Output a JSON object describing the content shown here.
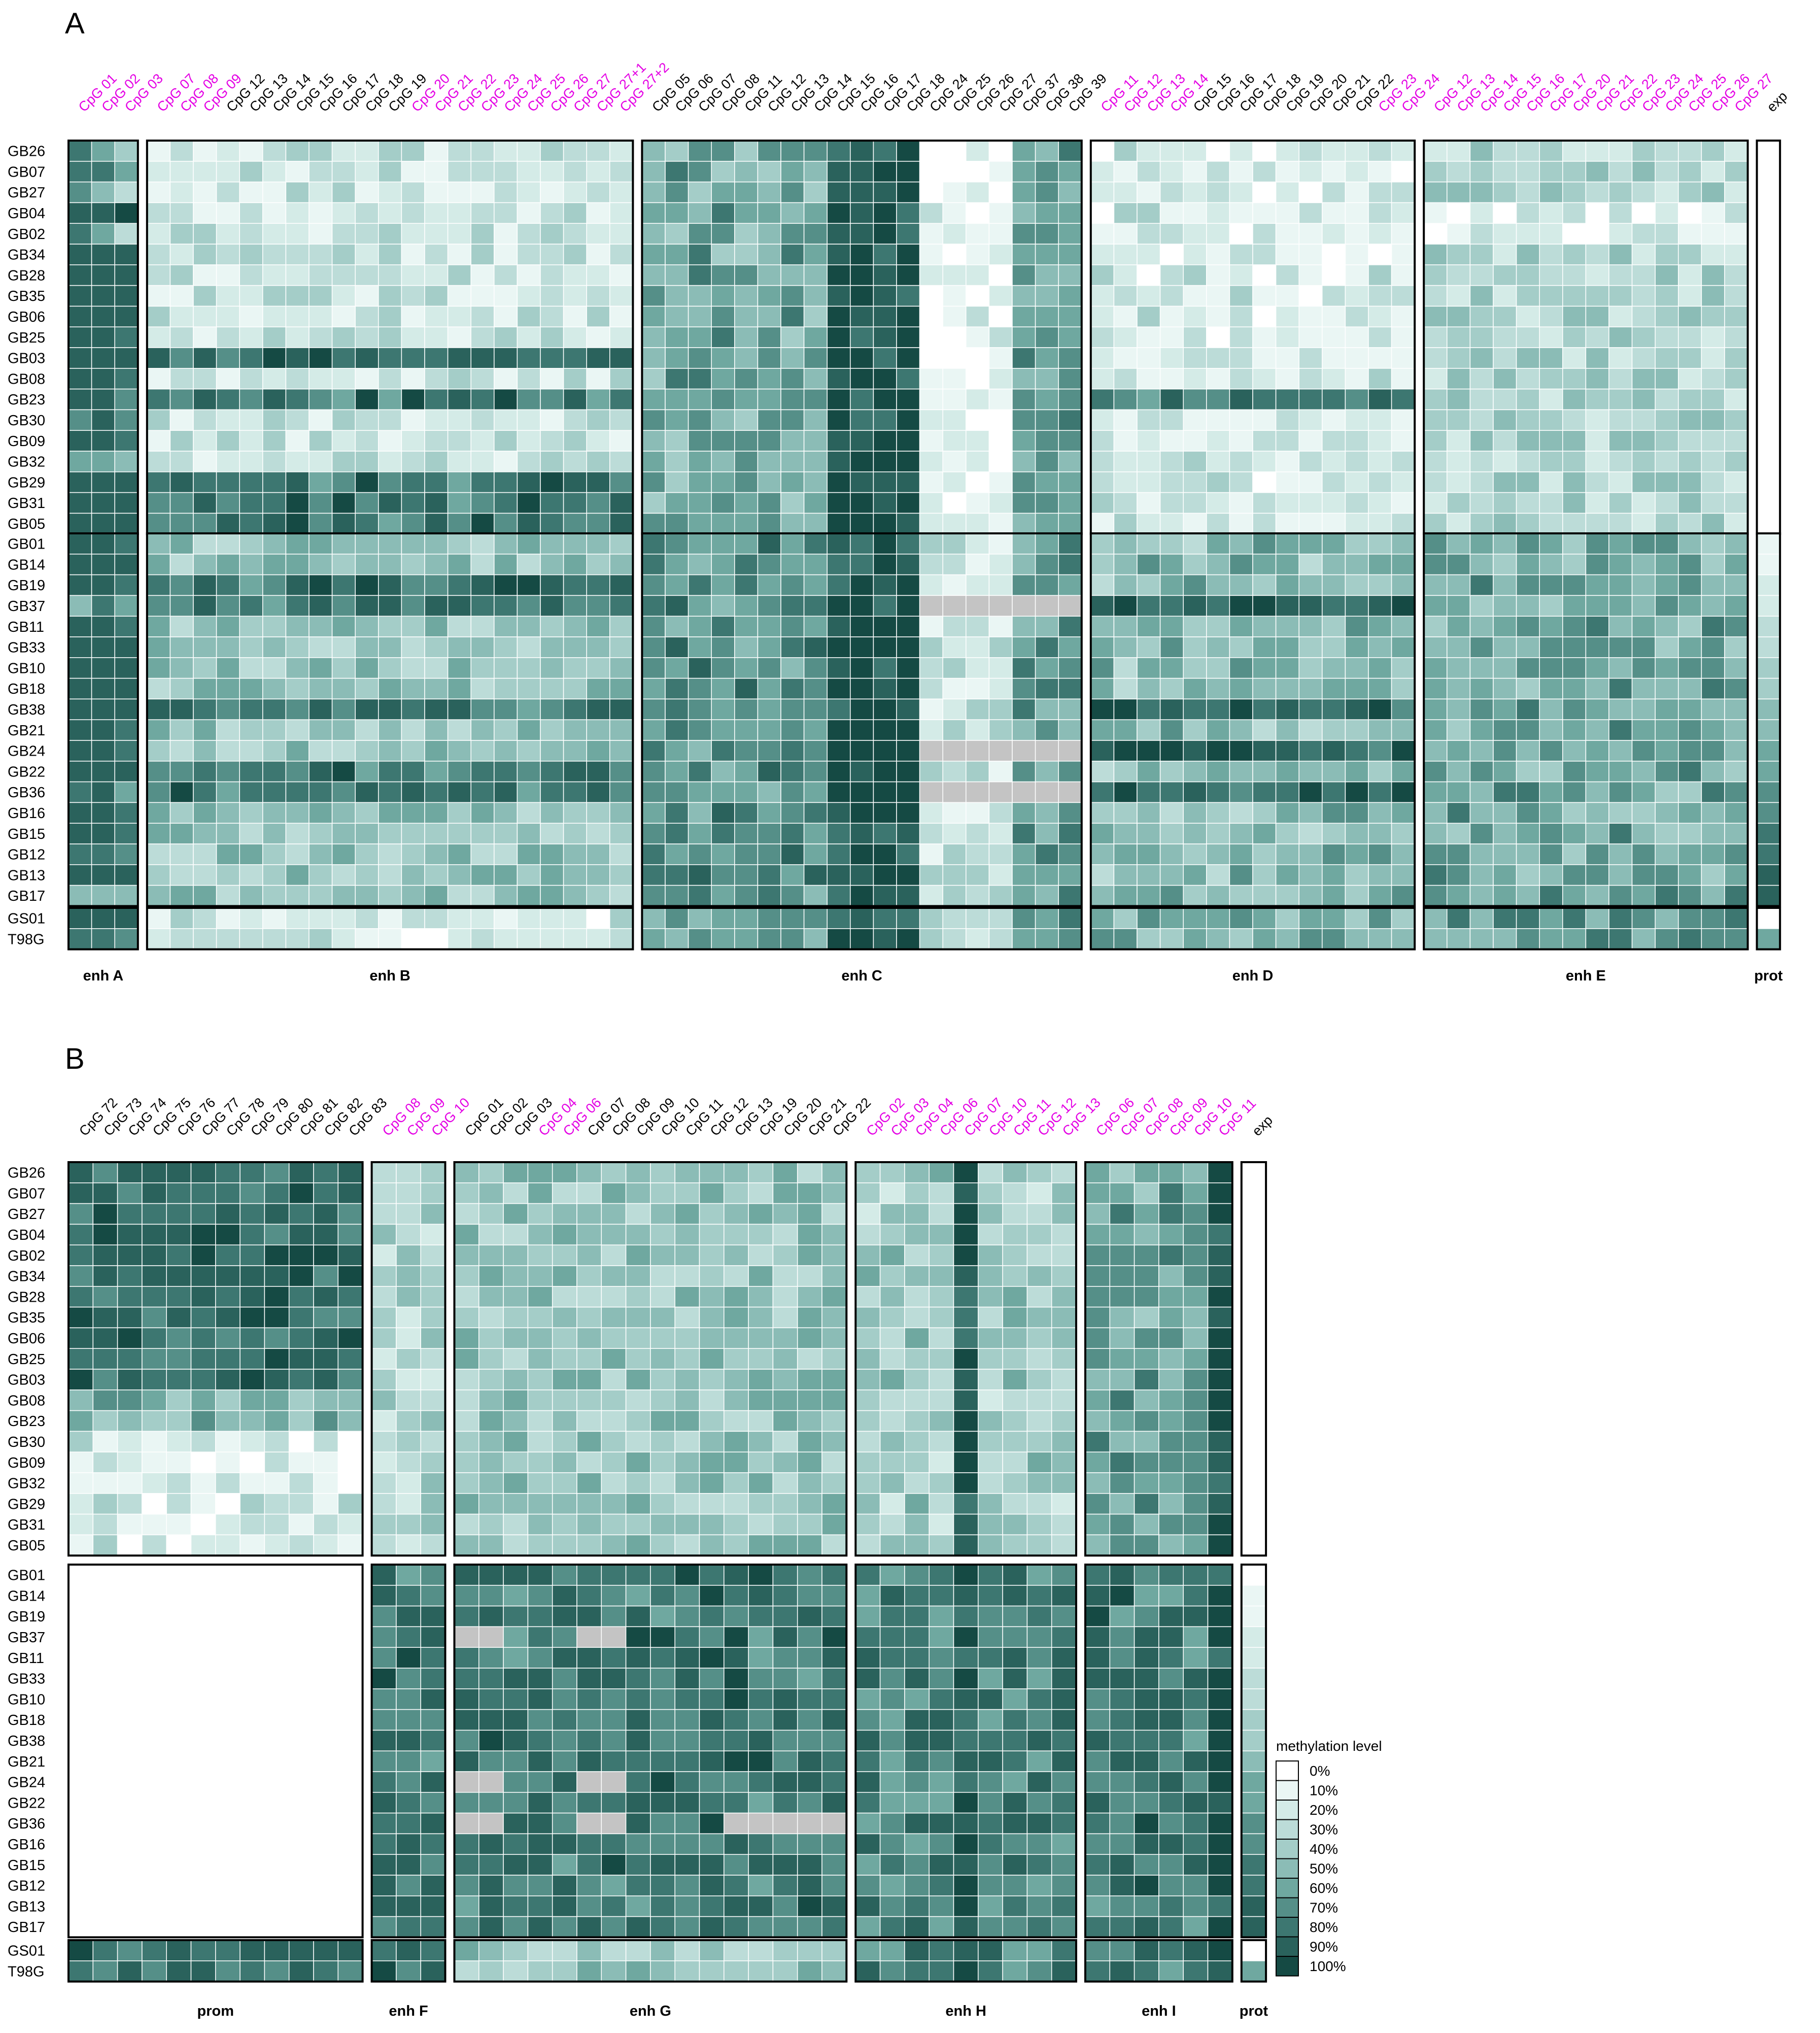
{
  "colors": {
    "na": "#c4c4c4",
    "highlight_label": "#e400e4",
    "normal_label": "#000000",
    "scale": [
      "#ffffff",
      "#eaf6f4",
      "#d4ebe7",
      "#bcdcd8",
      "#a4cdc8",
      "#8bbcb6",
      "#6fa8a0",
      "#558f88",
      "#3d7771",
      "#2a625c",
      "#154a44"
    ]
  },
  "chart_data": [
    {
      "type": "heatmap",
      "panel": "A",
      "rows": {
        "top": [
          "GB26",
          "GB07",
          "GB27",
          "GB04",
          "GB02",
          "GB34",
          "GB28",
          "GB35",
          "GB06",
          "GB25",
          "GB03",
          "GB08",
          "GB23",
          "GB30",
          "GB09",
          "GB32",
          "GB29",
          "GB31",
          "GB05"
        ],
        "middle": [
          "GB01",
          "GB14",
          "GB19",
          "GB37",
          "GB11",
          "GB33",
          "GB10",
          "GB18",
          "GB38",
          "GB21",
          "GB24",
          "GB22",
          "GB36",
          "GB16",
          "GB15",
          "GB12",
          "GB13",
          "GB17"
        ],
        "bottom": [
          "GS01",
          "T98G"
        ]
      },
      "groups": [
        {
          "name": "enh A",
          "cols": [
            {
              "t": "CpG 01",
              "h": true
            },
            {
              "t": "CpG 02",
              "h": true
            },
            {
              "t": "CpG 03",
              "h": true
            }
          ]
        },
        {
          "name": "enh B",
          "cols": [
            {
              "t": "CpG 07",
              "h": true
            },
            {
              "t": "CpG 08",
              "h": true
            },
            {
              "t": "CpG 09",
              "h": true
            },
            {
              "t": "CpG 12",
              "h": false
            },
            {
              "t": "CpG 13",
              "h": false
            },
            {
              "t": "CpG 14",
              "h": false
            },
            {
              "t": "CpG 15",
              "h": false
            },
            {
              "t": "CpG 16",
              "h": false
            },
            {
              "t": "CpG 17",
              "h": false
            },
            {
              "t": "CpG 18",
              "h": false
            },
            {
              "t": "CpG 19",
              "h": false
            },
            {
              "t": "CpG 20",
              "h": true
            },
            {
              "t": "CpG 21",
              "h": true
            },
            {
              "t": "CpG 22",
              "h": true
            },
            {
              "t": "CpG 23",
              "h": true
            },
            {
              "t": "CpG 24",
              "h": true
            },
            {
              "t": "CpG 25",
              "h": true
            },
            {
              "t": "CpG 26",
              "h": true
            },
            {
              "t": "CpG 27",
              "h": true
            },
            {
              "t": "CpG 27+1",
              "h": true
            },
            {
              "t": "CpG 27+2",
              "h": true
            }
          ]
        },
        {
          "name": "enh C",
          "cols": [
            {
              "t": "CpG 05",
              "h": false
            },
            {
              "t": "CpG 06",
              "h": false
            },
            {
              "t": "CpG 07",
              "h": false
            },
            {
              "t": "CpG 08",
              "h": false
            },
            {
              "t": "CpG 11",
              "h": false
            },
            {
              "t": "CpG 12",
              "h": false
            },
            {
              "t": "CpG 13",
              "h": false
            },
            {
              "t": "CpG 14",
              "h": false
            },
            {
              "t": "CpG 15",
              "h": false
            },
            {
              "t": "CpG 16",
              "h": false
            },
            {
              "t": "CpG 17",
              "h": false
            },
            {
              "t": "CpG 18",
              "h": false
            },
            {
              "t": "CpG 24",
              "h": false
            },
            {
              "t": "CpG 25",
              "h": false
            },
            {
              "t": "CpG 26",
              "h": false
            },
            {
              "t": "CpG 27",
              "h": false
            },
            {
              "t": "CpG 37",
              "h": false
            },
            {
              "t": "CpG 38",
              "h": false
            },
            {
              "t": "CpG 39",
              "h": false
            }
          ]
        },
        {
          "name": "enh D",
          "cols": [
            {
              "t": "CpG 11",
              "h": true
            },
            {
              "t": "CpG 12",
              "h": true
            },
            {
              "t": "CpG 13",
              "h": true
            },
            {
              "t": "CpG 14",
              "h": true
            },
            {
              "t": "CpG 15",
              "h": false
            },
            {
              "t": "CpG 16",
              "h": false
            },
            {
              "t": "CpG 17",
              "h": false
            },
            {
              "t": "CpG 18",
              "h": false
            },
            {
              "t": "CpG 19",
              "h": false
            },
            {
              "t": "CpG 20",
              "h": false
            },
            {
              "t": "CpG 21",
              "h": false
            },
            {
              "t": "CpG 22",
              "h": false
            },
            {
              "t": "CpG 23",
              "h": true
            },
            {
              "t": "CpG 24",
              "h": true
            }
          ]
        },
        {
          "name": "enh E",
          "cols": [
            {
              "t": "CpG 12",
              "h": true
            },
            {
              "t": "CpG 13",
              "h": true
            },
            {
              "t": "CpG 14",
              "h": true
            },
            {
              "t": "CpG 15",
              "h": true
            },
            {
              "t": "CpG 16",
              "h": true
            },
            {
              "t": "CpG 17",
              "h": true
            },
            {
              "t": "CpG 20",
              "h": true
            },
            {
              "t": "CpG 21",
              "h": true
            },
            {
              "t": "CpG 22",
              "h": true
            },
            {
              "t": "CpG 23",
              "h": true
            },
            {
              "t": "CpG 24",
              "h": true
            },
            {
              "t": "CpG 25",
              "h": true
            },
            {
              "t": "CpG 26",
              "h": true
            },
            {
              "t": "CpG 27",
              "h": true
            }
          ]
        },
        {
          "name": "prot",
          "cols": [
            {
              "t": "exp",
              "h": false
            }
          ]
        }
      ],
      "value_scale": "methylation fraction 0-1",
      "approx_values": {
        "enh A": [
          [
            0.8,
            0.6,
            0.4
          ],
          [
            0.8,
            0.75,
            0.6
          ],
          [
            0.7,
            0.5,
            0.3
          ],
          [
            0.9,
            0.9,
            0.95
          ],
          [
            0.8,
            0.6,
            0.3
          ],
          [
            0.9,
            0.9,
            0.9
          ],
          [
            0.9,
            0.9,
            0.9
          ],
          [
            0.9,
            0.9,
            0.9
          ],
          [
            0.9,
            0.9,
            0.9
          ],
          [
            0.9,
            0.9,
            0.8
          ],
          [
            0.9,
            0.9,
            0.9
          ],
          [
            0.9,
            0.9,
            0.8
          ],
          [
            0.9,
            0.9,
            0.7
          ],
          [
            0.7,
            0.9,
            0.7
          ],
          [
            0.9,
            0.9,
            0.8
          ],
          [
            0.6,
            0.6,
            0.5
          ],
          [
            0.9,
            0.9,
            0.9
          ],
          [
            0.9,
            0.9,
            0.9
          ],
          [
            0.9,
            0.9,
            0.9
          ],
          [
            0.9,
            0.9,
            0.8
          ],
          [
            0.9,
            0.9,
            0.9
          ],
          [
            0.9,
            0.9,
            0.8
          ],
          [
            0.5,
            0.8,
            0.6
          ],
          [
            0.9,
            0.9,
            0.8
          ],
          [
            0.9,
            0.9,
            0.9
          ],
          [
            0.9,
            0.9,
            0.9
          ],
          [
            0.9,
            0.9,
            0.9
          ],
          [
            0.9,
            0.9,
            0.9
          ],
          [
            0.9,
            0.9,
            0.8
          ],
          [
            0.9,
            0.9,
            0.8
          ],
          [
            0.9,
            0.9,
            0.9
          ],
          [
            0.8,
            0.9,
            0.6
          ],
          [
            0.9,
            0.9,
            0.8
          ],
          [
            0.9,
            0.9,
            0.8
          ],
          [
            0.8,
            0.8,
            0.7
          ],
          [
            0.9,
            0.9,
            0.9
          ],
          [
            0.5,
            0.5,
            0.5
          ],
          [
            0.9,
            0.9,
            0.9
          ],
          [
            0.8,
            0.8,
            0.7
          ]
        ],
        "prot": [
          0,
          0,
          0,
          0,
          0,
          0,
          0,
          0,
          0,
          0,
          0,
          0,
          0,
          0,
          0,
          0,
          0,
          0,
          0,
          0.05,
          0.1,
          0.15,
          0.2,
          0.25,
          0.3,
          0.35,
          0.4,
          0.45,
          0.5,
          0.55,
          0.6,
          0.65,
          0.7,
          0.75,
          0.8,
          0.85,
          0.9,
          0,
          0.6
        ]
      }
    },
    {
      "type": "heatmap",
      "panel": "B",
      "rows": {
        "top": [
          "GB26",
          "GB07",
          "GB27",
          "GB04",
          "GB02",
          "GB34",
          "GB28",
          "GB35",
          "GB06",
          "GB25",
          "GB03",
          "GB08",
          "GB23",
          "GB30",
          "GB09",
          "GB32",
          "GB29",
          "GB31",
          "GB05"
        ],
        "middle": [
          "GB01",
          "GB14",
          "GB19",
          "GB37",
          "GB11",
          "GB33",
          "GB10",
          "GB18",
          "GB38",
          "GB21",
          "GB24",
          "GB22",
          "GB36",
          "GB16",
          "GB15",
          "GB12",
          "GB13",
          "GB17"
        ],
        "bottom": [
          "GS01",
          "T98G"
        ]
      },
      "groups": [
        {
          "name": "prom",
          "cols": [
            {
              "t": "CpG 72",
              "h": false
            },
            {
              "t": "CpG 73",
              "h": false
            },
            {
              "t": "CpG 74",
              "h": false
            },
            {
              "t": "CpG 75",
              "h": false
            },
            {
              "t": "CpG 76",
              "h": false
            },
            {
              "t": "CpG 77",
              "h": false
            },
            {
              "t": "CpG 78",
              "h": false
            },
            {
              "t": "CpG 79",
              "h": false
            },
            {
              "t": "CpG 80",
              "h": false
            },
            {
              "t": "CpG 81",
              "h": false
            },
            {
              "t": "CpG 82",
              "h": false
            },
            {
              "t": "CpG 83",
              "h": false
            }
          ]
        },
        {
          "name": "enh F",
          "cols": [
            {
              "t": "CpG 08",
              "h": true
            },
            {
              "t": "CpG 09",
              "h": true
            },
            {
              "t": "CpG 10",
              "h": true
            }
          ]
        },
        {
          "name": "enh G",
          "cols": [
            {
              "t": "CpG 01",
              "h": false
            },
            {
              "t": "CpG 02",
              "h": false
            },
            {
              "t": "CpG 03",
              "h": false
            },
            {
              "t": "CpG 04",
              "h": true
            },
            {
              "t": "CpG 06",
              "h": true
            },
            {
              "t": "CpG 07",
              "h": false
            },
            {
              "t": "CpG 08",
              "h": false
            },
            {
              "t": "CpG 09",
              "h": false
            },
            {
              "t": "CpG 10",
              "h": false
            },
            {
              "t": "CpG 11",
              "h": false
            },
            {
              "t": "CpG 12",
              "h": false
            },
            {
              "t": "CpG 13",
              "h": false
            },
            {
              "t": "CpG 19",
              "h": false
            },
            {
              "t": "CpG 20",
              "h": false
            },
            {
              "t": "CpG 21",
              "h": false
            },
            {
              "t": "CpG 22",
              "h": false
            }
          ]
        },
        {
          "name": "enh H",
          "cols": [
            {
              "t": "CpG 02",
              "h": true
            },
            {
              "t": "CpG 03",
              "h": true
            },
            {
              "t": "CpG 04",
              "h": true
            },
            {
              "t": "CpG 06",
              "h": true
            },
            {
              "t": "CpG 07",
              "h": true
            },
            {
              "t": "CpG 10",
              "h": true
            },
            {
              "t": "CpG 11",
              "h": true
            },
            {
              "t": "CpG 12",
              "h": true
            },
            {
              "t": "CpG 13",
              "h": true
            }
          ]
        },
        {
          "name": "enh I",
          "cols": [
            {
              "t": "CpG 06",
              "h": true
            },
            {
              "t": "CpG 07",
              "h": true
            },
            {
              "t": "CpG 08",
              "h": true
            },
            {
              "t": "CpG 09",
              "h": true
            },
            {
              "t": "CpG 10",
              "h": true
            },
            {
              "t": "CpG 11",
              "h": true
            }
          ]
        },
        {
          "name": "prot",
          "cols": [
            {
              "t": "exp",
              "h": false
            }
          ]
        }
      ],
      "value_scale": "methylation fraction 0-1"
    }
  ],
  "legend": {
    "title": "methylation level",
    "ticks": [
      "0%",
      "10%",
      "20%",
      "30%",
      "40%",
      "50%",
      "60%",
      "70%",
      "80%",
      "90%",
      "100%"
    ]
  }
}
